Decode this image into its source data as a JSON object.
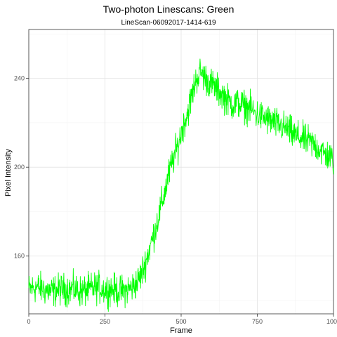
{
  "chart_data": {
    "type": "line",
    "title": "Two-photon Linescans: Green",
    "subtitle": "LineScan-06092017-1414-619",
    "xlabel": "Frame",
    "ylabel": "Pixel Intensity",
    "xlim": [
      0,
      1000
    ],
    "ylim": [
      134,
      262
    ],
    "x_ticks": [
      0,
      250,
      500,
      750,
      1000
    ],
    "y_ticks": [
      160,
      200,
      240
    ],
    "grid": true,
    "legend": "none",
    "series": [
      {
        "color": "#00ff00",
        "x": [
          0,
          25,
          50,
          75,
          100,
          125,
          150,
          175,
          200,
          225,
          250,
          275,
          300,
          325,
          340,
          355,
          370,
          385,
          400,
          415,
          430,
          445,
          460,
          475,
          490,
          505,
          520,
          535,
          550,
          565,
          580,
          595,
          610,
          625,
          640,
          655,
          670,
          685,
          700,
          715,
          730,
          745,
          760,
          775,
          790,
          805,
          820,
          835,
          850,
          865,
          880,
          895,
          910,
          925,
          940,
          955,
          970,
          985,
          1000
        ],
        "y": [
          145,
          146,
          145,
          144,
          145,
          145,
          145,
          144,
          145,
          146,
          145,
          145,
          144,
          145,
          146,
          148,
          152,
          158,
          165,
          172,
          180,
          188,
          197,
          204,
          210,
          218,
          224,
          232,
          240,
          243,
          240,
          238,
          236,
          234,
          232,
          230,
          228,
          229,
          228,
          227,
          226,
          224,
          223,
          222,
          221,
          220,
          219,
          218,
          217,
          215,
          214,
          213,
          212,
          211,
          210,
          208,
          206,
          205,
          203
        ]
      }
    ]
  }
}
